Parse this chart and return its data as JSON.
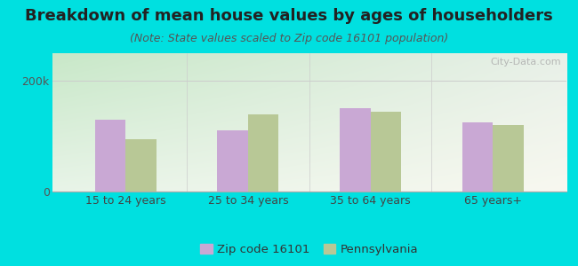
{
  "title": "Breakdown of mean house values by ages of householders",
  "subtitle": "(Note: State values scaled to Zip code 16101 population)",
  "categories": [
    "15 to 24 years",
    "25 to 34 years",
    "35 to 64 years",
    "65 years+"
  ],
  "zip_values": [
    130000,
    110000,
    150000,
    125000
  ],
  "state_values": [
    95000,
    140000,
    145000,
    120000
  ],
  "zip_color": "#c9a8d4",
  "state_color": "#b8c896",
  "background_outer": "#00e0e0",
  "bg_top_left": "#c8e8c8",
  "bg_bottom_right": "#f8f8f0",
  "ylim": [
    0,
    250000
  ],
  "yticks": [
    0,
    200000
  ],
  "ytick_labels": [
    "0",
    "200k"
  ],
  "legend_zip_label": "Zip code 16101",
  "legend_state_label": "Pennsylvania",
  "watermark": "City-Data.com",
  "bar_width": 0.25,
  "title_fontsize": 13,
  "subtitle_fontsize": 9
}
